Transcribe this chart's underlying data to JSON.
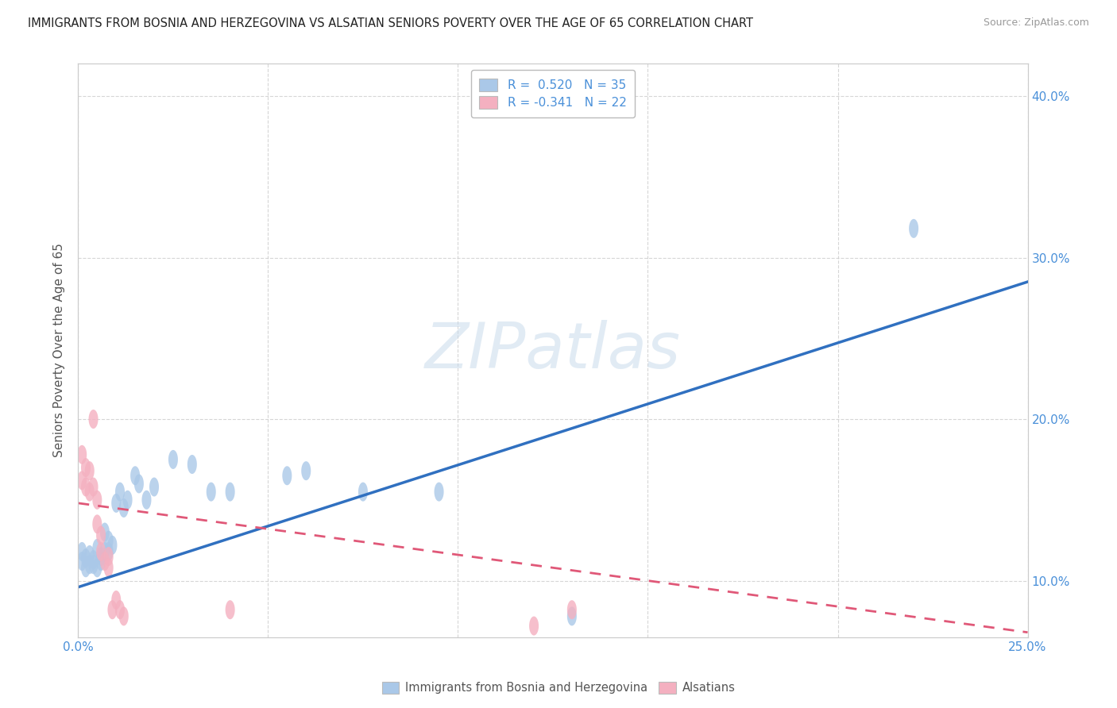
{
  "title": "IMMIGRANTS FROM BOSNIA AND HERZEGOVINA VS ALSATIAN SENIORS POVERTY OVER THE AGE OF 65 CORRELATION CHART",
  "source": "Source: ZipAtlas.com",
  "ylabel": "Seniors Poverty Over the Age of 65",
  "xmin": 0.0,
  "xmax": 0.25,
  "ymin": 0.065,
  "ymax": 0.42,
  "xticks": [
    0.0,
    0.05,
    0.1,
    0.15,
    0.2,
    0.25
  ],
  "xtick_labels": [
    "0.0%",
    "",
    "",
    "",
    "",
    "25.0%"
  ],
  "yticks": [
    0.1,
    0.2,
    0.3,
    0.4
  ],
  "ytick_labels": [
    "10.0%",
    "20.0%",
    "30.0%",
    "40.0%"
  ],
  "R_blue": 0.52,
  "N_blue": 35,
  "R_pink": -0.341,
  "N_pink": 22,
  "blue_color": "#aac8e8",
  "pink_color": "#f4b0c0",
  "blue_line_color": "#3070c0",
  "pink_line_color": "#e05878",
  "watermark": "ZIPatlas",
  "blue_scatter": [
    [
      0.001,
      0.118
    ],
    [
      0.001,
      0.112
    ],
    [
      0.002,
      0.108
    ],
    [
      0.002,
      0.114
    ],
    [
      0.003,
      0.116
    ],
    [
      0.003,
      0.11
    ],
    [
      0.004,
      0.113
    ],
    [
      0.004,
      0.11
    ],
    [
      0.005,
      0.12
    ],
    [
      0.005,
      0.108
    ],
    [
      0.006,
      0.115
    ],
    [
      0.006,
      0.112
    ],
    [
      0.007,
      0.13
    ],
    [
      0.007,
      0.118
    ],
    [
      0.008,
      0.125
    ],
    [
      0.008,
      0.118
    ],
    [
      0.009,
      0.122
    ],
    [
      0.01,
      0.148
    ],
    [
      0.011,
      0.155
    ],
    [
      0.012,
      0.145
    ],
    [
      0.013,
      0.15
    ],
    [
      0.015,
      0.165
    ],
    [
      0.016,
      0.16
    ],
    [
      0.018,
      0.15
    ],
    [
      0.02,
      0.158
    ],
    [
      0.025,
      0.175
    ],
    [
      0.03,
      0.172
    ],
    [
      0.035,
      0.155
    ],
    [
      0.04,
      0.155
    ],
    [
      0.055,
      0.165
    ],
    [
      0.06,
      0.168
    ],
    [
      0.075,
      0.155
    ],
    [
      0.095,
      0.155
    ],
    [
      0.13,
      0.078
    ],
    [
      0.22,
      0.318
    ]
  ],
  "pink_scatter": [
    [
      0.001,
      0.178
    ],
    [
      0.001,
      0.162
    ],
    [
      0.002,
      0.17
    ],
    [
      0.002,
      0.158
    ],
    [
      0.003,
      0.168
    ],
    [
      0.003,
      0.155
    ],
    [
      0.004,
      0.2
    ],
    [
      0.004,
      0.158
    ],
    [
      0.005,
      0.15
    ],
    [
      0.005,
      0.135
    ],
    [
      0.006,
      0.128
    ],
    [
      0.006,
      0.118
    ],
    [
      0.007,
      0.112
    ],
    [
      0.008,
      0.115
    ],
    [
      0.008,
      0.108
    ],
    [
      0.009,
      0.082
    ],
    [
      0.01,
      0.088
    ],
    [
      0.011,
      0.082
    ],
    [
      0.012,
      0.078
    ],
    [
      0.04,
      0.082
    ],
    [
      0.12,
      0.072
    ],
    [
      0.13,
      0.082
    ]
  ],
  "blue_trendline": [
    [
      0.0,
      0.096
    ],
    [
      0.25,
      0.285
    ]
  ],
  "pink_trendline": [
    [
      0.0,
      0.148
    ],
    [
      0.25,
      0.068
    ]
  ]
}
